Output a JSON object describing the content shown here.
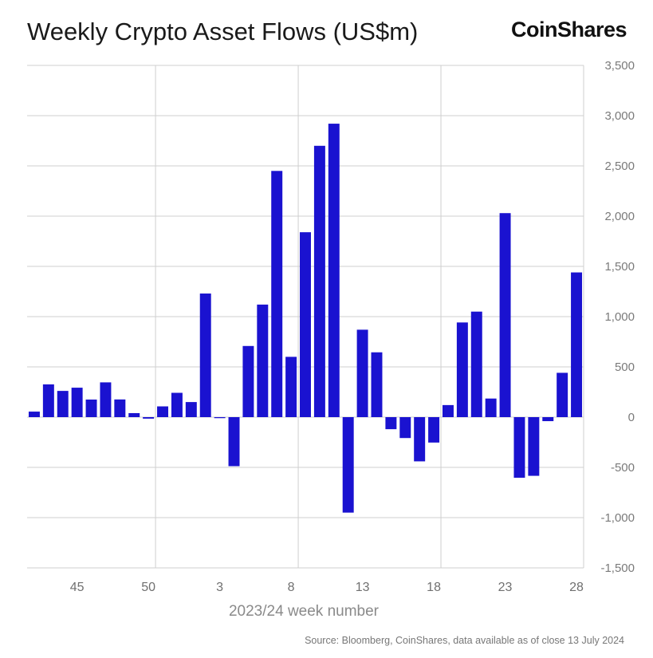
{
  "header": {
    "title": "Weekly Crypto Asset Flows (US$m)",
    "brand": "CoinShares"
  },
  "footer": {
    "source": "Source: Bloomberg, CoinShares, data available as of close 13 July 2024"
  },
  "colors": {
    "bar": "#1a12d0",
    "grid": "#cfcfcf",
    "axis_text": "#7a7a7a"
  },
  "chart_data": {
    "type": "bar",
    "title": "Weekly Crypto Asset Flows (US$m)",
    "xlabel": "2023/24 week number",
    "ylabel": "",
    "ylim": [
      -1500,
      3500
    ],
    "yticks": [
      3500,
      3000,
      2500,
      2000,
      1500,
      1000,
      500,
      0,
      -500,
      -1000,
      -1500
    ],
    "ytick_labels": [
      "3,500",
      "3,000",
      "2,500",
      "2,000",
      "1,500",
      "1,000",
      "500",
      "0",
      "-500",
      "-1,000",
      "-1,500"
    ],
    "xtick_labels": [
      {
        "label": "45",
        "at_bar_index": 3
      },
      {
        "label": "50",
        "at_bar_index": 8
      },
      {
        "label": "3",
        "at_bar_index": 13
      },
      {
        "label": "8",
        "at_bar_index": 18
      },
      {
        "label": "13",
        "at_bar_index": 23
      },
      {
        "label": "18",
        "at_bar_index": 28
      },
      {
        "label": "23",
        "at_bar_index": 33
      },
      {
        "label": "28",
        "at_bar_index": 38
      }
    ],
    "vertical_gridlines_after_bar_index": [
      8,
      18,
      28
    ],
    "grid": true,
    "legend": "none",
    "categories": [
      "42",
      "43",
      "44",
      "45",
      "46",
      "47",
      "48",
      "49",
      "50",
      "51",
      "52",
      "1",
      "2",
      "3",
      "4",
      "5",
      "6",
      "7",
      "8",
      "9",
      "10",
      "11",
      "12",
      "13",
      "14",
      "15",
      "16",
      "17",
      "18",
      "19",
      "20",
      "21",
      "22",
      "23",
      "24",
      "25",
      "26",
      "27",
      "28"
    ],
    "values": [
      55,
      326,
      261,
      293,
      175,
      346,
      176,
      40,
      -15,
      107,
      242,
      150,
      1230,
      -10,
      -488,
      708,
      1120,
      2450,
      600,
      1840,
      2700,
      2920,
      -950,
      870,
      645,
      -120,
      -208,
      -440,
      -253,
      120,
      942,
      1050,
      185,
      2030,
      -603,
      -584,
      -40,
      441,
      1440
    ]
  }
}
